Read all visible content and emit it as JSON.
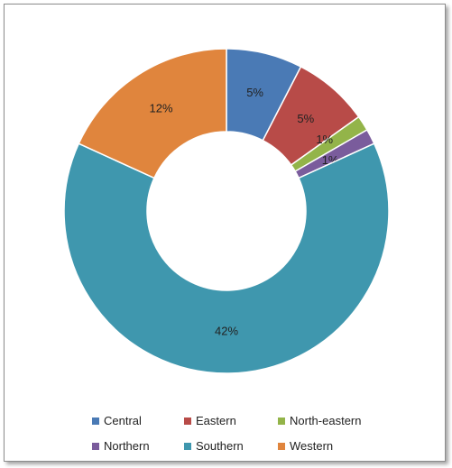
{
  "chart_data": {
    "type": "pie",
    "variant": "donut",
    "title": "",
    "slices": [
      {
        "name": "Central",
        "value": 5,
        "label": "5%",
        "color": "#4a7ab5"
      },
      {
        "name": "Eastern",
        "value": 5,
        "label": "5%",
        "color": "#b84b48"
      },
      {
        "name": "North-eastern",
        "value": 1,
        "label": "1%",
        "color": "#93b449"
      },
      {
        "name": "Northern",
        "value": 1,
        "label": "1%",
        "color": "#7a5c9c"
      },
      {
        "name": "Southern",
        "value": 42,
        "label": "42%",
        "color": "#3f97ae"
      },
      {
        "name": "Western",
        "value": 12,
        "label": "12%",
        "color": "#e0853d"
      }
    ],
    "legend_position": "bottom"
  }
}
